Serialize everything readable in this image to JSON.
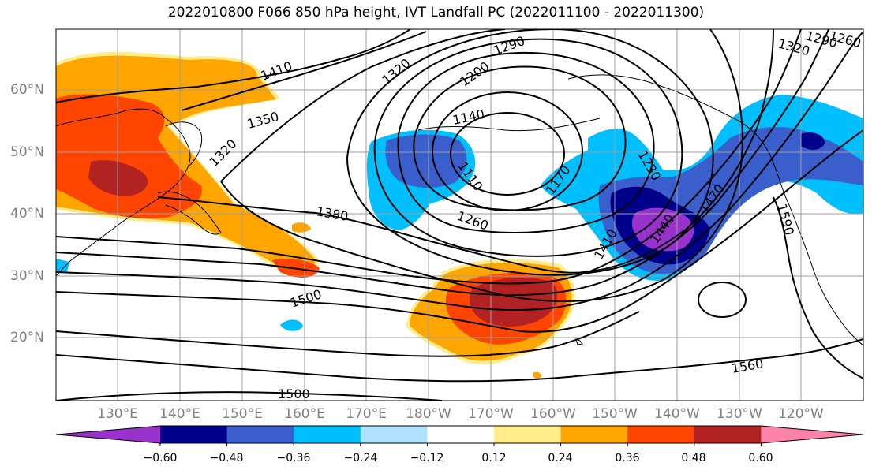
{
  "title": "2022010800 F066 850 hPa height, IVT Landfall PC (2022011100 - 2022011300)",
  "lat_labels": [
    "60°N",
    "50°N",
    "40°N",
    "30°N",
    "20°N"
  ],
  "lon_labels": [
    "130°E",
    "140°E",
    "150°E",
    "160°E",
    "170°E",
    "180°W",
    "170°W",
    "160°W",
    "150°W",
    "140°W",
    "130°W",
    "120°W"
  ],
  "contour_labels": [
    "1410",
    "1350",
    "1320",
    "1320",
    "1290",
    "1200",
    "1140",
    "1110",
    "1170",
    "1230",
    "1260",
    "1380",
    "1410",
    "1440",
    "1470",
    "1500",
    "1500",
    "1560",
    "1590",
    "1320",
    "1290",
    "1260"
  ],
  "colorbar": {
    "ticks": [
      "−0.60",
      "−0.48",
      "−0.36",
      "−0.24",
      "−0.12",
      "0.12",
      "0.24",
      "0.36",
      "0.48",
      "0.60"
    ],
    "colors": [
      "#9932CC",
      "#00008B",
      "#3A5FCD",
      "#00BFFF",
      "#B0E2FF",
      "#FFFFFF",
      "#FFEC8B",
      "#FFA500",
      "#FF4500",
      "#B22222",
      "#FF82AB"
    ]
  }
}
